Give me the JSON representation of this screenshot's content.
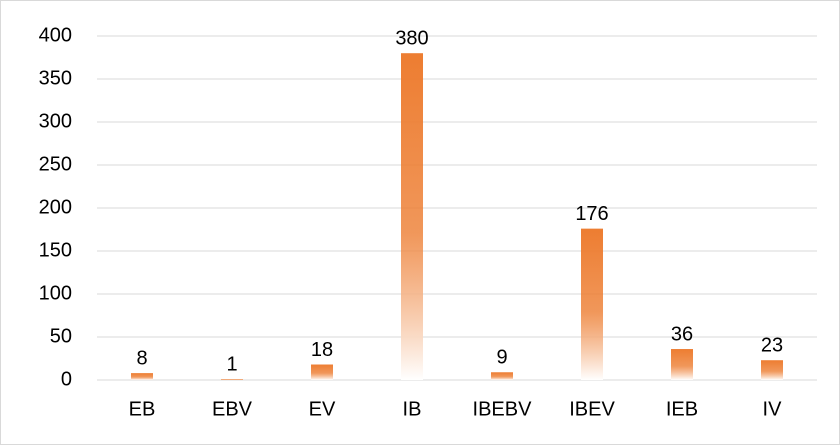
{
  "chart_data": {
    "type": "bar",
    "categories": [
      "EB",
      "EBV",
      "EV",
      "IB",
      "IBEBV",
      "IBEV",
      "IEB",
      "IV"
    ],
    "values": [
      8,
      1,
      18,
      380,
      9,
      176,
      36,
      23
    ],
    "color": "#ed7d31",
    "ylim": [
      0,
      400
    ],
    "yticks": [
      0,
      50,
      100,
      150,
      200,
      250,
      300,
      350,
      400
    ],
    "grid": true
  }
}
